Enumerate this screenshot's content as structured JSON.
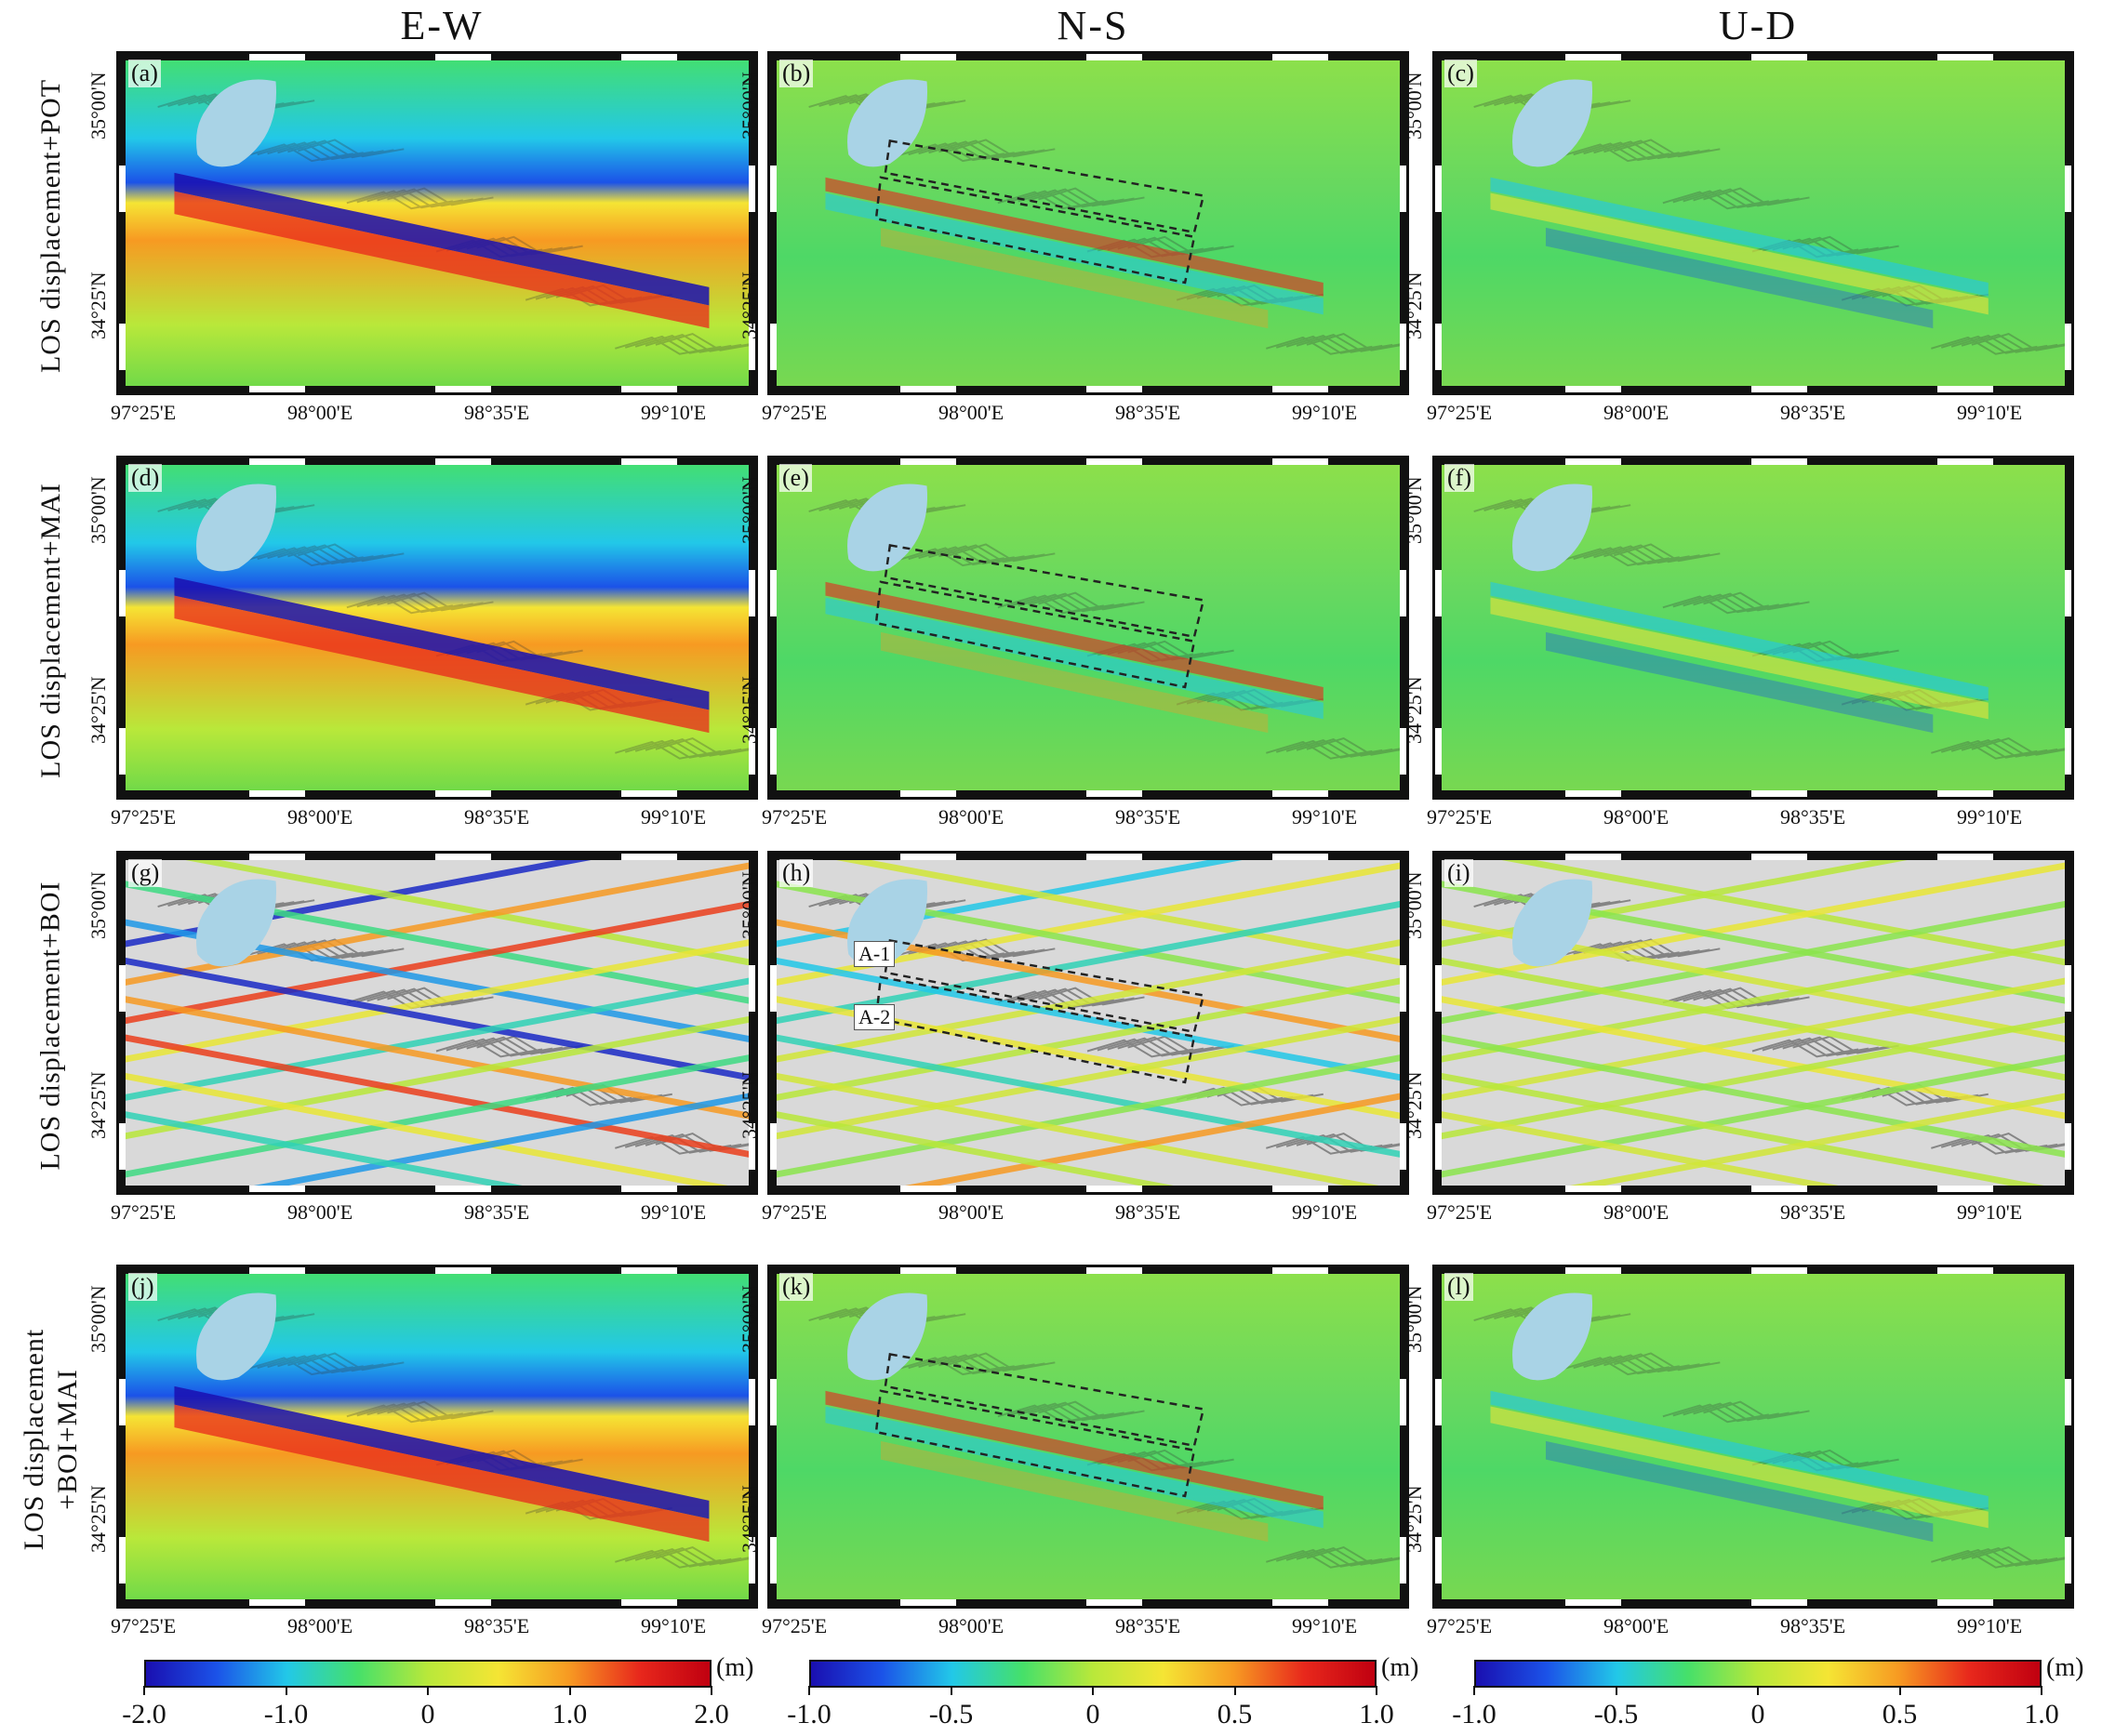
{
  "columns": [
    "E-W",
    "N-S",
    "U-D"
  ],
  "rows": [
    {
      "label": "LOS displacement+POT"
    },
    {
      "label": "LOS displacement+MAI"
    },
    {
      "label": "LOS displacement+BOI"
    },
    {
      "label": "LOS displacement\n+BOI+MAI"
    }
  ],
  "panel_labels": [
    "(a)",
    "(b)",
    "(c)",
    "(d)",
    "(e)",
    "(f)",
    "(g)",
    "(h)",
    "(i)",
    "(j)",
    "(k)",
    "(l)"
  ],
  "lat_labels": [
    "35°00'N",
    "34°25'N"
  ],
  "lon_labels": [
    "97°25'E",
    "98°00'E",
    "98°35'E",
    "99°10'E"
  ],
  "callouts": [
    "A-1",
    "A-2"
  ],
  "colorbars": [
    {
      "unit": "(m)",
      "ticks": [
        "-2.0",
        "-1.0",
        "0",
        "1.0",
        "2.0"
      ]
    },
    {
      "unit": "(m)",
      "ticks": [
        "-1.0",
        "-0.5",
        "0",
        "0.5",
        "1.0"
      ]
    },
    {
      "unit": "(m)",
      "ticks": [
        "-1.0",
        "-0.5",
        "0",
        "0.5",
        "1.0"
      ]
    }
  ],
  "colors": {
    "lake": "#a9d3e6",
    "hillshade": "#d8d8d8",
    "jet": [
      "#1a0fb0",
      "#1b52e8",
      "#22c8e8",
      "#45e06a",
      "#b9e83a",
      "#f5e534",
      "#f79a22",
      "#e8281c",
      "#c00010"
    ]
  }
}
